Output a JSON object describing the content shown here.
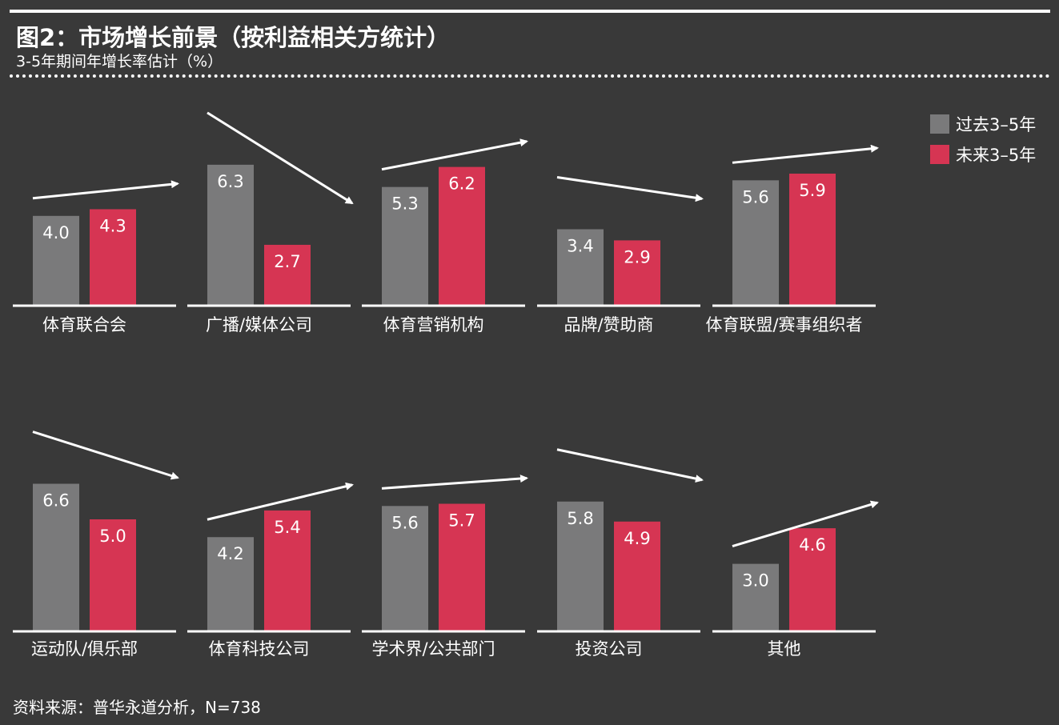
{
  "header": {
    "title": "图2：市场增长前景（按利益相关方统计）",
    "subtitle": "3-5年期间年增长率估计（%）"
  },
  "footer": {
    "source": "资料来源：普华永道分析，N=738"
  },
  "colors": {
    "past": "#7a7a7b",
    "future": "#d63553",
    "background": "#393939",
    "text": "#ffffff"
  },
  "chart_data": {
    "type": "bar",
    "title": "图2：市场增长前景（按利益相关方统计）",
    "subtitle": "3-5年期间年增长率估计（%）",
    "legend_position": "top-right",
    "grid": false,
    "series": [
      {
        "name": "过去3–5年",
        "color": "#7a7a7b",
        "values": [
          4.0,
          6.3,
          5.3,
          3.4,
          5.6,
          6.6,
          4.2,
          5.6,
          5.8,
          3.0
        ]
      },
      {
        "name": "未来3–5年",
        "color": "#d63553",
        "values": [
          4.3,
          2.7,
          6.2,
          2.9,
          5.9,
          5.0,
          5.4,
          5.7,
          4.9,
          4.6
        ]
      }
    ],
    "categories": [
      "体育联合会",
      "广播/媒体公司",
      "体育营销机构",
      "品牌/赞助商",
      "体育联盟/赛事组织者",
      "运动队/俱乐部",
      "体育科技公司",
      "学术界/公共部门",
      "投资公司",
      "其他"
    ],
    "value_labels": [
      [
        "4.0",
        "4.3"
      ],
      [
        "6.3",
        "2.7"
      ],
      [
        "5.3",
        "6.2"
      ],
      [
        "3.4",
        "2.9"
      ],
      [
        "5.6",
        "5.9"
      ],
      [
        "6.6",
        "5.0"
      ],
      [
        "4.2",
        "5.4"
      ],
      [
        "5.6",
        "5.7"
      ],
      [
        "5.8",
        "4.9"
      ],
      [
        "3.0",
        "4.6"
      ]
    ]
  }
}
